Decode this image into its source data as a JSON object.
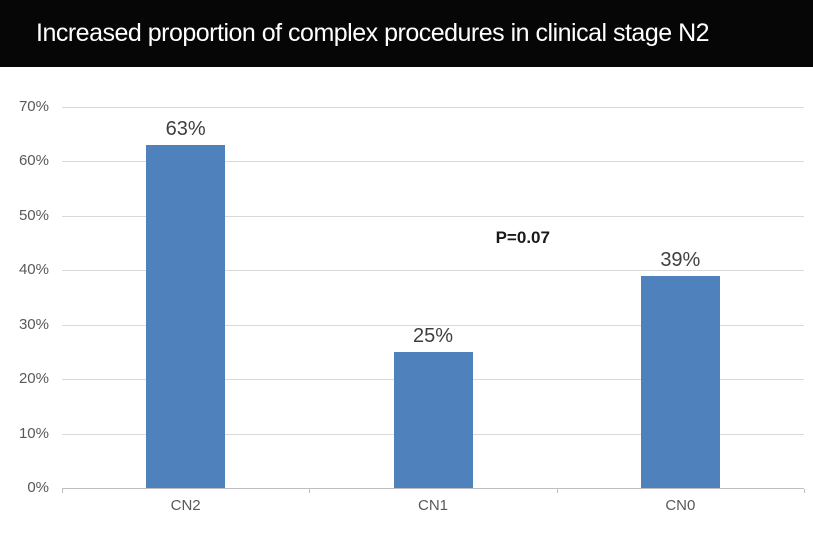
{
  "header": {
    "title": "Increased proportion of complex procedures in clinical stage N2",
    "background_color": "#060606",
    "text_color": "#ffffff"
  },
  "chart_data": {
    "type": "bar",
    "title": "Increased proportion of complex procedures in clinical stage N2",
    "xlabel": "",
    "ylabel": "",
    "categories": [
      "CN2",
      "CN1",
      "CN0"
    ],
    "values": [
      63,
      25,
      39
    ],
    "value_labels": [
      "63%",
      "25%",
      "39%"
    ],
    "yticks": [
      {
        "value": 0,
        "label": "0%"
      },
      {
        "value": 10,
        "label": "10%"
      },
      {
        "value": 20,
        "label": "20%"
      },
      {
        "value": 30,
        "label": "30%"
      },
      {
        "value": 40,
        "label": "40%"
      },
      {
        "value": 50,
        "label": "50%"
      },
      {
        "value": 60,
        "label": "60%"
      },
      {
        "value": 70,
        "label": "70%"
      }
    ],
    "ylim": [
      0,
      70
    ],
    "grid": true,
    "legend": false,
    "annotation": {
      "text": "P=0.07",
      "x_fraction": 0.621,
      "y_value": 46
    },
    "colors": {
      "bar": "#4f81bd",
      "gridline": "#d9d9d9",
      "axis_line": "#bfbfbf",
      "tick_label": "#595959",
      "value_label": "#3f3f3f"
    }
  }
}
